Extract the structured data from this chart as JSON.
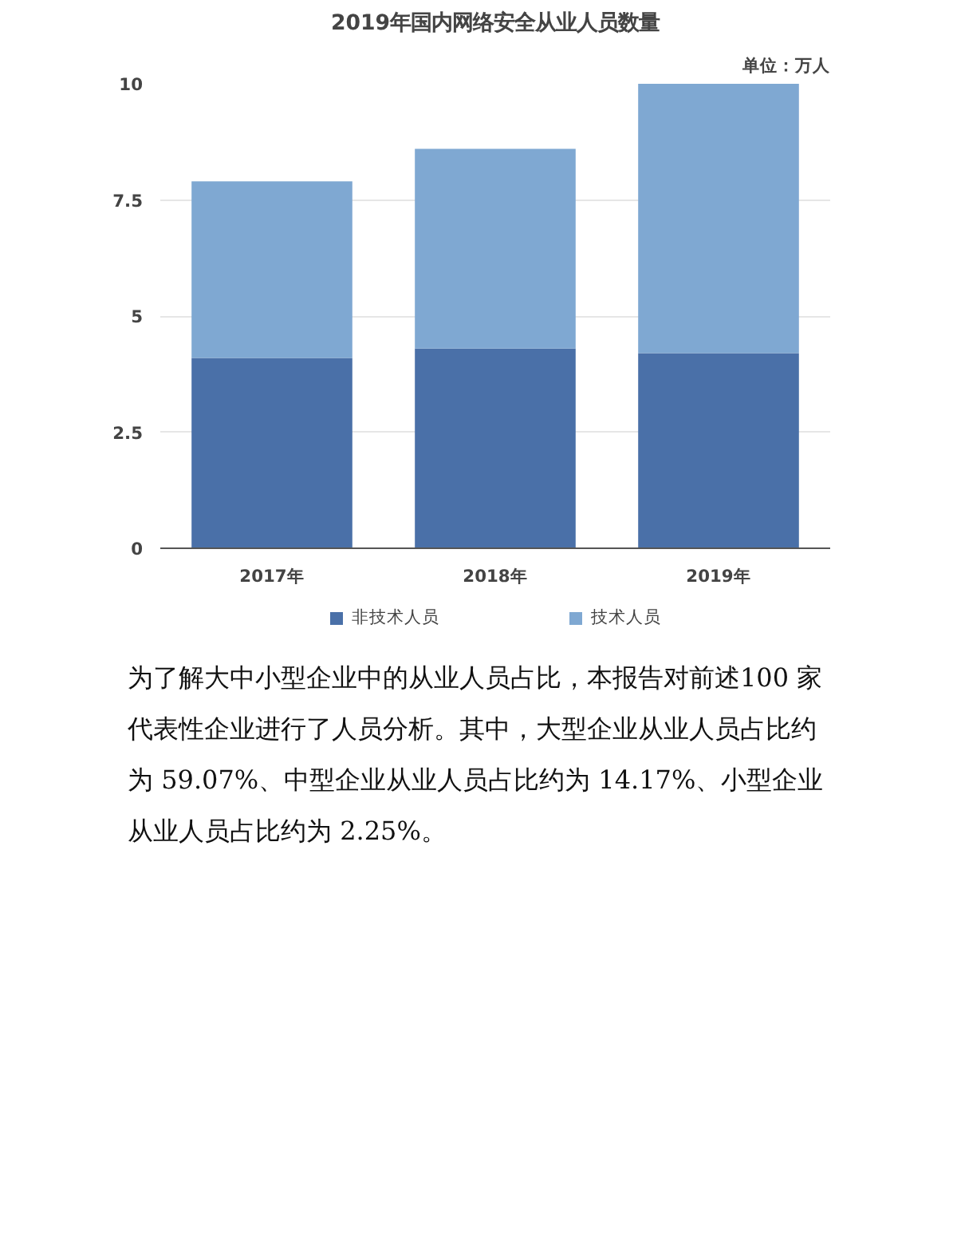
{
  "chart_data": {
    "type": "bar",
    "title": "2019年国内网络安全从业人员数量",
    "stacked": true,
    "categories": [
      "2017年",
      "2018年",
      "2019年"
    ],
    "series": [
      {
        "name": "非技术人员",
        "color": "#4a70a8",
        "values": [
          4.1,
          4.3,
          4.2
        ]
      },
      {
        "name": "技术人员",
        "color": "#7fa8d2",
        "values": [
          3.8,
          4.3,
          5.8
        ]
      }
    ],
    "ylim": [
      0,
      10
    ],
    "yticks": [
      0,
      2.5,
      5,
      7.5,
      10
    ],
    "grid": "y",
    "legend": "bottom",
    "annotations": [
      "单位：万人",
      "为了解大中小型企业中的从业人员占比，本报告对前述100 家代表性企业进行了人员分析。其中，大型企业从业人员占比约为 59.07%、中型企业从业人员占比约为 14.17%、小型企业从业人员占比约为 2.25%。"
    ]
  }
}
